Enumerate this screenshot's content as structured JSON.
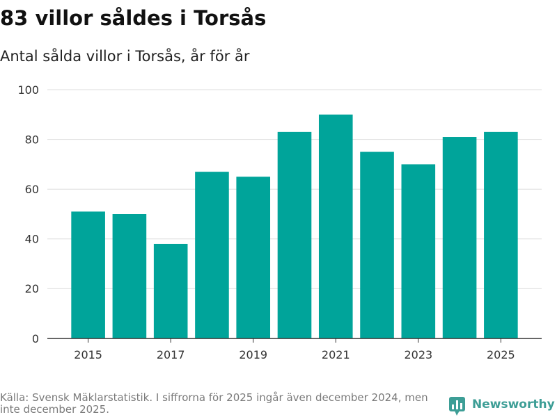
{
  "chart_data": {
    "type": "bar",
    "title": "83 villor såldes i Torsås",
    "subtitle": "Antal sålda villor i Torsås, år för år",
    "categories": [
      2015,
      2016,
      2017,
      2018,
      2019,
      2020,
      2021,
      2022,
      2023,
      2024,
      2025
    ],
    "values": [
      51,
      50,
      38,
      67,
      65,
      83,
      90,
      75,
      70,
      81,
      83
    ],
    "xticks": [
      "2015",
      "2017",
      "2019",
      "2021",
      "2023",
      "2025"
    ],
    "yticks": [
      0,
      20,
      40,
      60,
      80,
      100
    ],
    "ylim": [
      0,
      100
    ],
    "xlabel": "",
    "ylabel": "",
    "grid": true,
    "color": "#00a49a"
  },
  "footer": {
    "source": "Källa: Svensk Mäklarstatistik. I siffrorna för 2025 ingår även december 2024, men inte december 2025.",
    "logo": "Newsworthy"
  },
  "colors": {
    "logo": "#3d9e96",
    "axis": "#333333",
    "grid": "#dddddd",
    "footer_text": "#7a7a7a"
  }
}
